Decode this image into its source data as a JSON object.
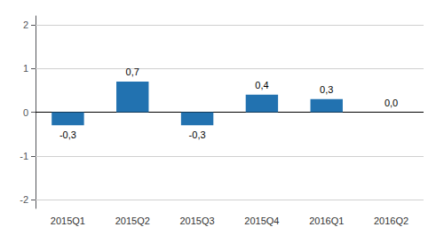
{
  "chart_data": {
    "type": "bar",
    "categories": [
      "2015Q1",
      "2015Q2",
      "2015Q3",
      "2015Q4",
      "2016Q1",
      "2016Q2"
    ],
    "values": [
      -0.3,
      0.7,
      -0.3,
      0.4,
      0.3,
      0.0
    ],
    "value_labels": [
      "-0,3",
      "0,7",
      "-0,3",
      "0,4",
      "0,3",
      "0,0"
    ],
    "data_labels": true,
    "color": "#2272b0",
    "ylim": [
      -2.2,
      2.2
    ],
    "yticks": [
      -2,
      -1,
      0,
      1,
      2
    ],
    "grid": true
  }
}
